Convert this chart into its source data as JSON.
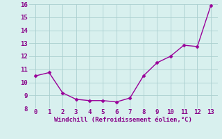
{
  "x": [
    0,
    1,
    2,
    3,
    4,
    5,
    6,
    7,
    8,
    9,
    10,
    11,
    12,
    13
  ],
  "y": [
    10.5,
    10.75,
    9.2,
    8.7,
    8.6,
    8.6,
    8.5,
    8.8,
    10.5,
    11.5,
    12.0,
    12.85,
    12.75,
    15.9
  ],
  "line_color": "#990099",
  "marker": "D",
  "marker_size": 2.5,
  "line_width": 1.0,
  "xlabel": "Windchill (Refroidissement éolien,°C)",
  "xlabel_fontsize": 6.5,
  "xlim": [
    -0.5,
    13.5
  ],
  "ylim": [
    8,
    16
  ],
  "yticks": [
    8,
    9,
    10,
    11,
    12,
    13,
    14,
    15,
    16
  ],
  "xticks": [
    0,
    1,
    2,
    3,
    4,
    5,
    6,
    7,
    8,
    9,
    10,
    11,
    12,
    13
  ],
  "grid_color": "#aacfcf",
  "background_color": "#d8f0ee",
  "tick_fontsize": 6.5,
  "tick_color": "#880088",
  "label_color": "#880088"
}
